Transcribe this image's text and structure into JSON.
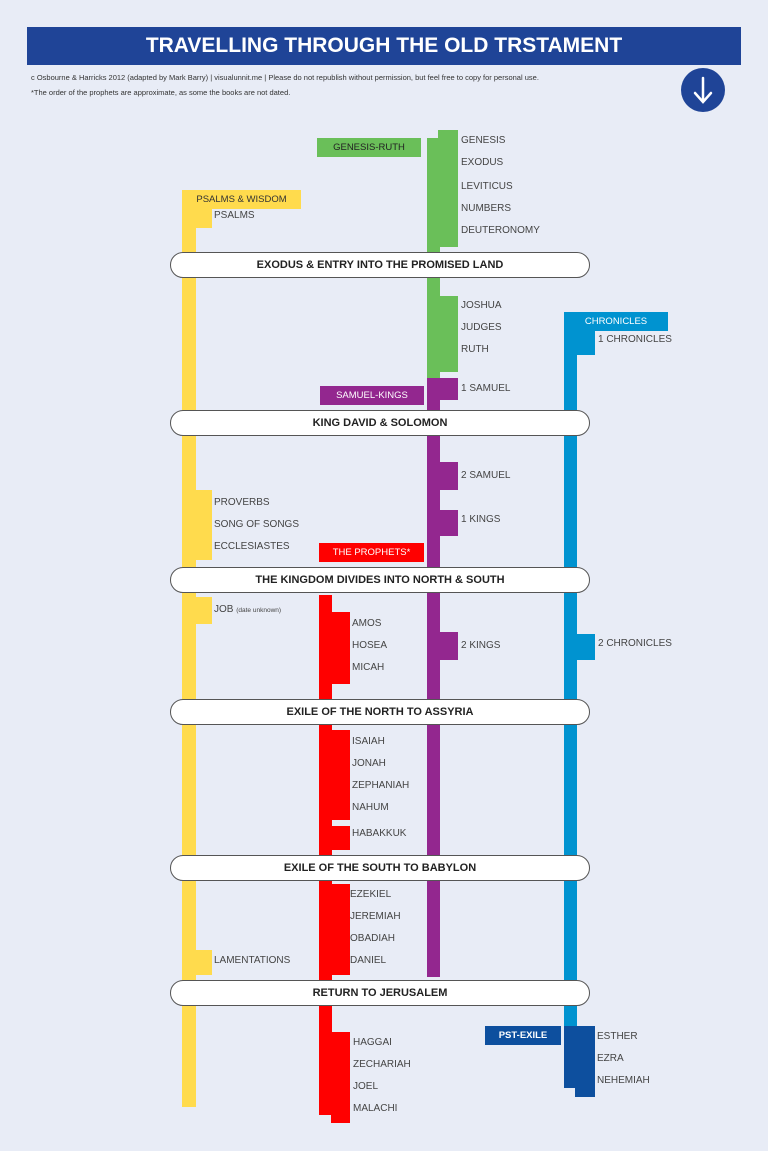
{
  "title": "TRAVELLING THROUGH THE OLD TRSTAMENT",
  "credit": "c Osbourne & Harricks 2012 (adapted by Mark Barry) | visualunnit.me  | Please do not republish without permission, but feel free to copy for personal use.",
  "footnote": "*The order of the prophets are approximate, as some the books are not dated.",
  "arrow_icon": "arrow-down-icon",
  "colors": {
    "header": "#1f4497",
    "wisdom": "#ffdb4d",
    "genesis_ruth": "#6abf59",
    "samuel_kings": "#93278f",
    "prophets": "#ff0000",
    "chronicles": "#0093d0",
    "post_exile": "#0d4f9e"
  },
  "groups": {
    "wisdom": "PSALMS & WISDOM",
    "genesis_ruth": "GENESIS-RUTH",
    "samuel_kings": "SAMUEL-KINGS",
    "prophets": "THE PROPHETS*",
    "chronicles": "CHRONICLES",
    "post_exile": "PST-EXILE"
  },
  "events": [
    "EXODUS & ENTRY INTO THE PROMISED LAND",
    "KING DAVID & SOLOMON",
    "THE KINGDOM DIVIDES INTO NORTH & SOUTH",
    "EXILE OF THE NORTH TO ASSYRIA",
    "EXILE OF THE SOUTH TO BABYLON",
    "RETURN TO JERUSALEM"
  ],
  "books": {
    "genesis_ruth": [
      "GENESIS",
      "EXODUS",
      "LEVITICUS",
      "NUMBERS",
      "DEUTERONOMY",
      "JOSHUA",
      "JUDGES",
      "RUTH"
    ],
    "samuel_kings": [
      "1 SAMUEL",
      "2 SAMUEL",
      "1 KINGS",
      "2 KINGS"
    ],
    "wisdom": [
      "PSALMS",
      "PROVERBS",
      "SONG OF SONGS",
      "ECCLESIASTES",
      "JOB",
      "LAMENTATIONS"
    ],
    "job_note": "(date unknown)",
    "prophets": [
      "AMOS",
      "HOSEA",
      "MICAH",
      "ISAIAH",
      "JONAH",
      "ZEPHANIAH",
      "NAHUM",
      "HABAKKUK",
      "EZEKIEL",
      "JEREMIAH",
      "OBADIAH",
      "DANIEL",
      "HAGGAI",
      "ZECHARIAH",
      "JOEL",
      "MALACHI"
    ],
    "chronicles": [
      "1 CHRONICLES",
      "2 CHRONICLES"
    ],
    "post_exile": [
      "ESTHER",
      "EZRA",
      "NEHEMIAH"
    ]
  }
}
